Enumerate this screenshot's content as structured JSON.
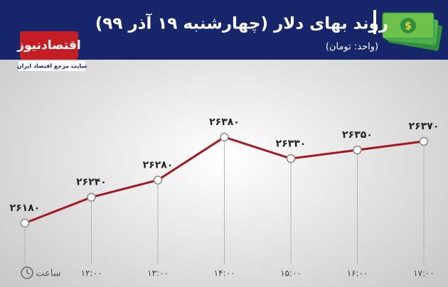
{
  "chart_data": {
    "type": "line",
    "title": "روند بهای دلار (چهارشنبه ۱۹ آذر ۹۹)",
    "subtitle": "(واحد: تومان)",
    "logo": "اقتصادنیوز",
    "logo_tagline": "سایت مرجع اقتصاد ایران",
    "x_label": "ساعت",
    "categories": [
      null,
      "۱۲:۰۰",
      "۱۳:۰۰",
      "۱۴:۰۰",
      "۱۵:۰۰",
      "۱۶:۰۰",
      "۱۷:۰۰"
    ],
    "values": [
      26180,
      26240,
      26280,
      26380,
      26330,
      26350,
      26370
    ],
    "value_labels": [
      "۲۶۱۸۰",
      "۲۶۲۴۰",
      "۲۶۲۸۰",
      "۲۶۳۸۰",
      "۲۶۳۳۰",
      "۲۶۳۵۰",
      "۲۶۳۷۰"
    ],
    "color": "#a3191f"
  }
}
